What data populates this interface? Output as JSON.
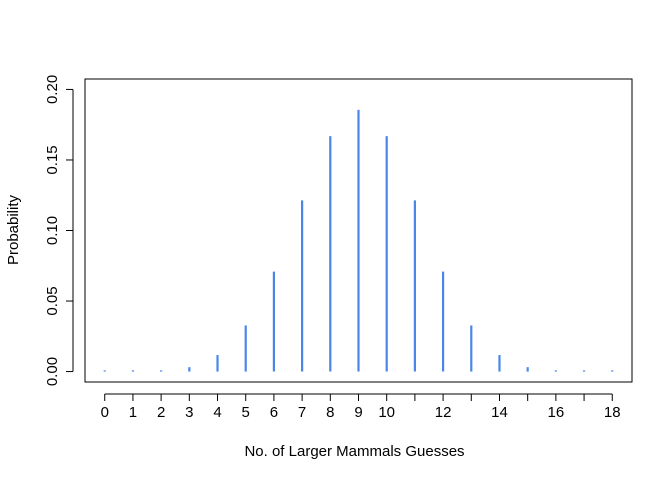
{
  "chart_data": {
    "type": "bar",
    "title": "",
    "xlabel": "No. of Larger Mammals Guesses",
    "ylabel": "Probability",
    "x": [
      0,
      1,
      2,
      3,
      4,
      5,
      6,
      7,
      8,
      9,
      10,
      11,
      12,
      13,
      14,
      15,
      16,
      17,
      18
    ],
    "values": [
      3.8e-06,
      6.87e-05,
      0.000584,
      0.00311,
      0.01167,
      0.03268,
      0.07082,
      0.1214,
      0.16692,
      0.18547,
      0.16692,
      0.1214,
      0.07082,
      0.03268,
      0.01167,
      0.00311,
      0.000584,
      6.87e-05,
      3.8e-06
    ],
    "xticks": [
      0,
      1,
      2,
      3,
      4,
      5,
      6,
      7,
      8,
      9,
      10,
      12,
      14,
      16,
      18
    ],
    "yticks": [
      "0.00",
      "0.05",
      "0.10",
      "0.15",
      "0.20"
    ],
    "xlim": [
      -0.7,
      18.7
    ],
    "ylim": [
      -0.0074,
      0.2074
    ],
    "series_color": "#4a86e8",
    "grid": false,
    "legend": "none"
  }
}
